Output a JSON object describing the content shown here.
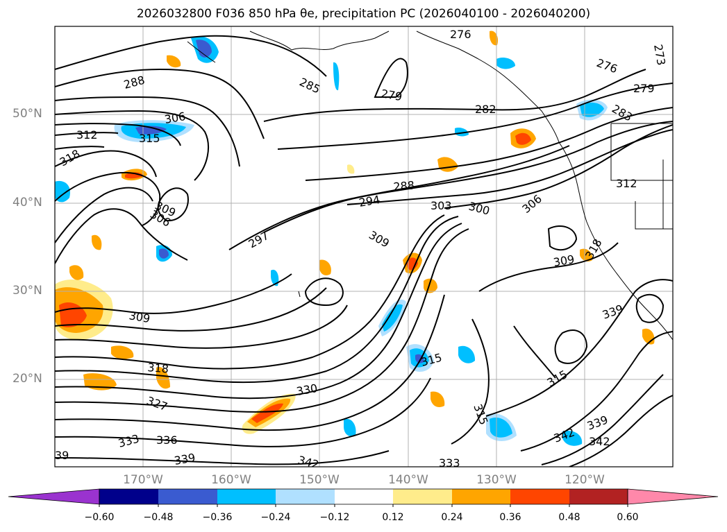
{
  "title": "2026032800 F036 850 hPa θe, precipitation PC (2026040100 - 2026040200)",
  "map": {
    "lat_labels": [
      "50°N",
      "40°N",
      "30°N",
      "20°N"
    ],
    "lon_labels": [
      "170°W",
      "160°W",
      "150°W",
      "140°W",
      "130°W",
      "120°W"
    ],
    "contour_labels": [
      "276",
      "276",
      "279",
      "279",
      "282",
      "283",
      "285",
      "288",
      "288",
      "294",
      "297",
      "303",
      "300",
      "306",
      "306",
      "306",
      "309",
      "309",
      "309",
      "309",
      "312",
      "312",
      "315",
      "315",
      "315",
      "315",
      "318",
      "318",
      "318",
      "327",
      "330",
      "333",
      "333",
      "336",
      "339",
      "339",
      "339",
      "342",
      "342",
      "342",
      "273",
      "39"
    ],
    "colors": {
      "frame": "#000000",
      "grid": "#b0b0b0",
      "label_gray": "#808080"
    }
  },
  "colorbar": {
    "ticks": [
      "−0.60",
      "−0.48",
      "−0.36",
      "−0.24",
      "−0.12",
      "0.12",
      "0.24",
      "0.36",
      "0.48",
      "0.60"
    ],
    "colors": [
      "#9a33cf",
      "#00008b",
      "#3a5bd0",
      "#00bfff",
      "#b0e0ff",
      "#ffffff",
      "#ffec8b",
      "#ffa500",
      "#ff4500",
      "#b22222",
      "#ff88aa"
    ]
  }
}
